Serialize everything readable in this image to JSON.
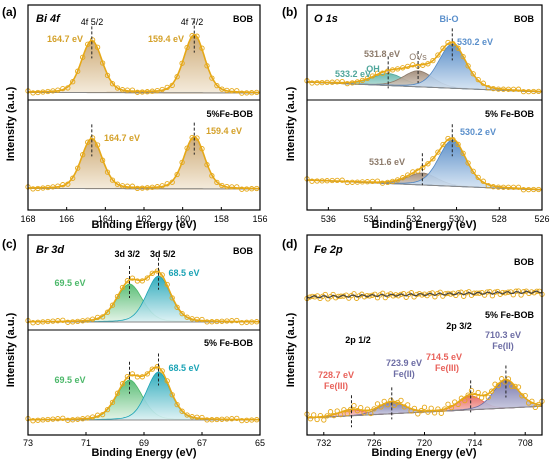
{
  "colors": {
    "bi": "#D4A12A",
    "bi_dark": "#8B6A1A",
    "o_blue": "#6FA3D8",
    "o_teal": "#5BB3A8",
    "o_brown": "#9C8572",
    "br_green": "#4CB86A",
    "br_teal": "#1BA3B5",
    "fe_red": "#E8615A",
    "fe_purple": "#7A7AB0",
    "data_ring": "#E6A817",
    "baseline": "#888888"
  },
  "chart_data": [
    {
      "id": "a",
      "type": "line",
      "panel_label": "(a)",
      "title": "Bi 4f",
      "xlabel": "Binding Energy (eV)",
      "ylabel": "Intensity (a.u.)",
      "xlim": [
        168,
        156
      ],
      "xticks": [
        "168",
        "166",
        "164",
        "162",
        "160",
        "158",
        "156"
      ],
      "series": [
        {
          "sample": "BOB",
          "peaks": [
            {
              "center": 164.7,
              "label": "164.7 eV",
              "state": "4f 5/2"
            },
            {
              "center": 159.4,
              "label": "159.4 eV",
              "state": "4f 7/2"
            }
          ]
        },
        {
          "sample": "5%Fe-BOB",
          "peaks": [
            {
              "center": 164.7,
              "label": "164.7 eV"
            },
            {
              "center": 159.4,
              "label": "159.4  eV"
            }
          ]
        }
      ]
    },
    {
      "id": "b",
      "type": "line",
      "panel_label": "(b)",
      "title": "O 1s",
      "xlabel": "Binding Energy (eV)",
      "ylabel": "Intensity (a.u.)",
      "xlim": [
        537,
        526
      ],
      "xticks": [
        "536",
        "534",
        "532",
        "530",
        "528",
        "526"
      ],
      "series": [
        {
          "sample": "BOB",
          "peaks": [
            {
              "center": 533.2,
              "label": "533.2 eV",
              "state": "OH"
            },
            {
              "center": 531.8,
              "label": "531.8 eV",
              "state": "OVs"
            },
            {
              "center": 530.2,
              "label": "530.2 eV",
              "state": "Bi-O"
            }
          ]
        },
        {
          "sample": "5% Fe-BOB",
          "peaks": [
            {
              "center": 531.6,
              "label": "531.6 eV"
            },
            {
              "center": 530.2,
              "label": "530.2 eV"
            }
          ]
        }
      ]
    },
    {
      "id": "c",
      "type": "line",
      "panel_label": "(c)",
      "title": "Br 3d",
      "xlabel": "Binding Energy (eV)",
      "ylabel": "Intensity (a.u.)",
      "xlim": [
        73,
        65
      ],
      "xticks": [
        "73",
        "71",
        "69",
        "67",
        "65"
      ],
      "series": [
        {
          "sample": "BOB",
          "peaks": [
            {
              "center": 69.5,
              "label": "69.5 eV",
              "state": "3d 3/2"
            },
            {
              "center": 68.5,
              "label": "68.5 eV",
              "state": "3d 5/2"
            }
          ]
        },
        {
          "sample": "5% Fe-BOB",
          "peaks": [
            {
              "center": 69.5,
              "label": "69.5 eV"
            },
            {
              "center": 68.5,
              "label": "68.5 eV"
            }
          ]
        }
      ]
    },
    {
      "id": "d",
      "type": "line",
      "panel_label": "(d)",
      "title": "Fe 2p",
      "xlabel": "Binding Energy (eV)",
      "ylabel": "Intensity (a.u.)",
      "xlim": [
        734,
        706
      ],
      "xticks": [
        "732",
        "726",
        "720",
        "714",
        "708"
      ],
      "series": [
        {
          "sample": "BOB",
          "peaks": []
        },
        {
          "sample": "5% Fe-BOB",
          "peaks": [
            {
              "center": 728.7,
              "label": "728.7 eV",
              "state": "Fe(III)"
            },
            {
              "center": 723.9,
              "label": "723.9 eV",
              "state": "Fe(II)"
            },
            {
              "center": 714.5,
              "label": "714.5 eV",
              "state": "Fe(III)"
            },
            {
              "center": 710.3,
              "label": "710.3 eV",
              "state": "Fe(II)"
            }
          ]
        }
      ],
      "annotations": [
        "2p 1/2",
        "2p 3/2"
      ]
    }
  ]
}
